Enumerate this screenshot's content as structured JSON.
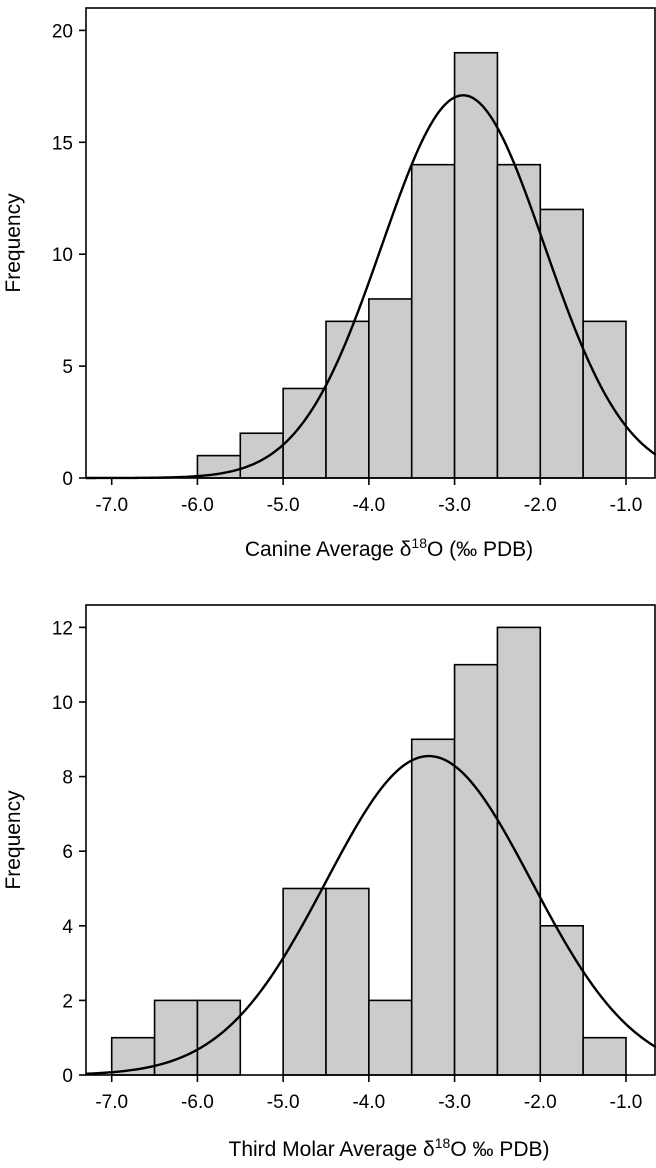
{
  "chart_data": [
    {
      "type": "bar",
      "subtype": "histogram",
      "xlabel": {
        "prefix": "Canine Average δ",
        "sup": "18",
        "suffix": "O (‰ PDB)"
      },
      "ylabel": "Frequency",
      "xlim": [
        -7.3,
        -0.65
      ],
      "ylim": [
        0,
        21
      ],
      "xticks": [
        -7.0,
        -6.0,
        -5.0,
        -4.0,
        -3.0,
        -2.0,
        -1.0
      ],
      "xtick_labels": [
        "-7.0",
        "-6.0",
        "-5.0",
        "-4.0",
        "-3.0",
        "-2.0",
        "-1.0"
      ],
      "yticks": [
        0,
        5,
        10,
        15,
        20
      ],
      "ytick_labels": [
        "0",
        "5",
        "10",
        "15",
        "20"
      ],
      "bin_edges": [
        -6.0,
        -5.5,
        -5.0,
        -4.5,
        -4.0,
        -3.5,
        -3.0,
        -2.5,
        -2.0,
        -1.5,
        -1.0
      ],
      "values": [
        1,
        2,
        4,
        7,
        8,
        14,
        19,
        14,
        12,
        7
      ],
      "normal_curve": {
        "mean": -2.9,
        "sd": 0.95,
        "peak": 17.1
      }
    },
    {
      "type": "bar",
      "subtype": "histogram",
      "xlabel": {
        "prefix": "Third Molar Average δ",
        "sup": "18",
        "suffix": "O ‰ PDB)"
      },
      "ylabel": "Frequency",
      "xlim": [
        -7.3,
        -0.65
      ],
      "ylim": [
        0,
        12.6
      ],
      "xticks": [
        -7.0,
        -6.0,
        -5.0,
        -4.0,
        -3.0,
        -2.0,
        -1.0
      ],
      "xtick_labels": [
        "-7.0",
        "-6.0",
        "-5.0",
        "-4.0",
        "-3.0",
        "-2.0",
        "-1.0"
      ],
      "yticks": [
        0,
        2,
        4,
        6,
        8,
        10,
        12
      ],
      "ytick_labels": [
        "0",
        "2",
        "4",
        "6",
        "8",
        "10",
        "12"
      ],
      "bin_edges": [
        -7.0,
        -6.5,
        -6.0,
        -5.5,
        -5.0,
        -4.5,
        -4.0,
        -3.5,
        -3.0,
        -2.5,
        -2.0,
        -1.5,
        -1.0
      ],
      "values": [
        1,
        2,
        2,
        0,
        5,
        5,
        2,
        9,
        11,
        12,
        4,
        1
      ],
      "normal_curve": {
        "mean": -3.3,
        "sd": 1.2,
        "peak": 8.55
      }
    }
  ]
}
